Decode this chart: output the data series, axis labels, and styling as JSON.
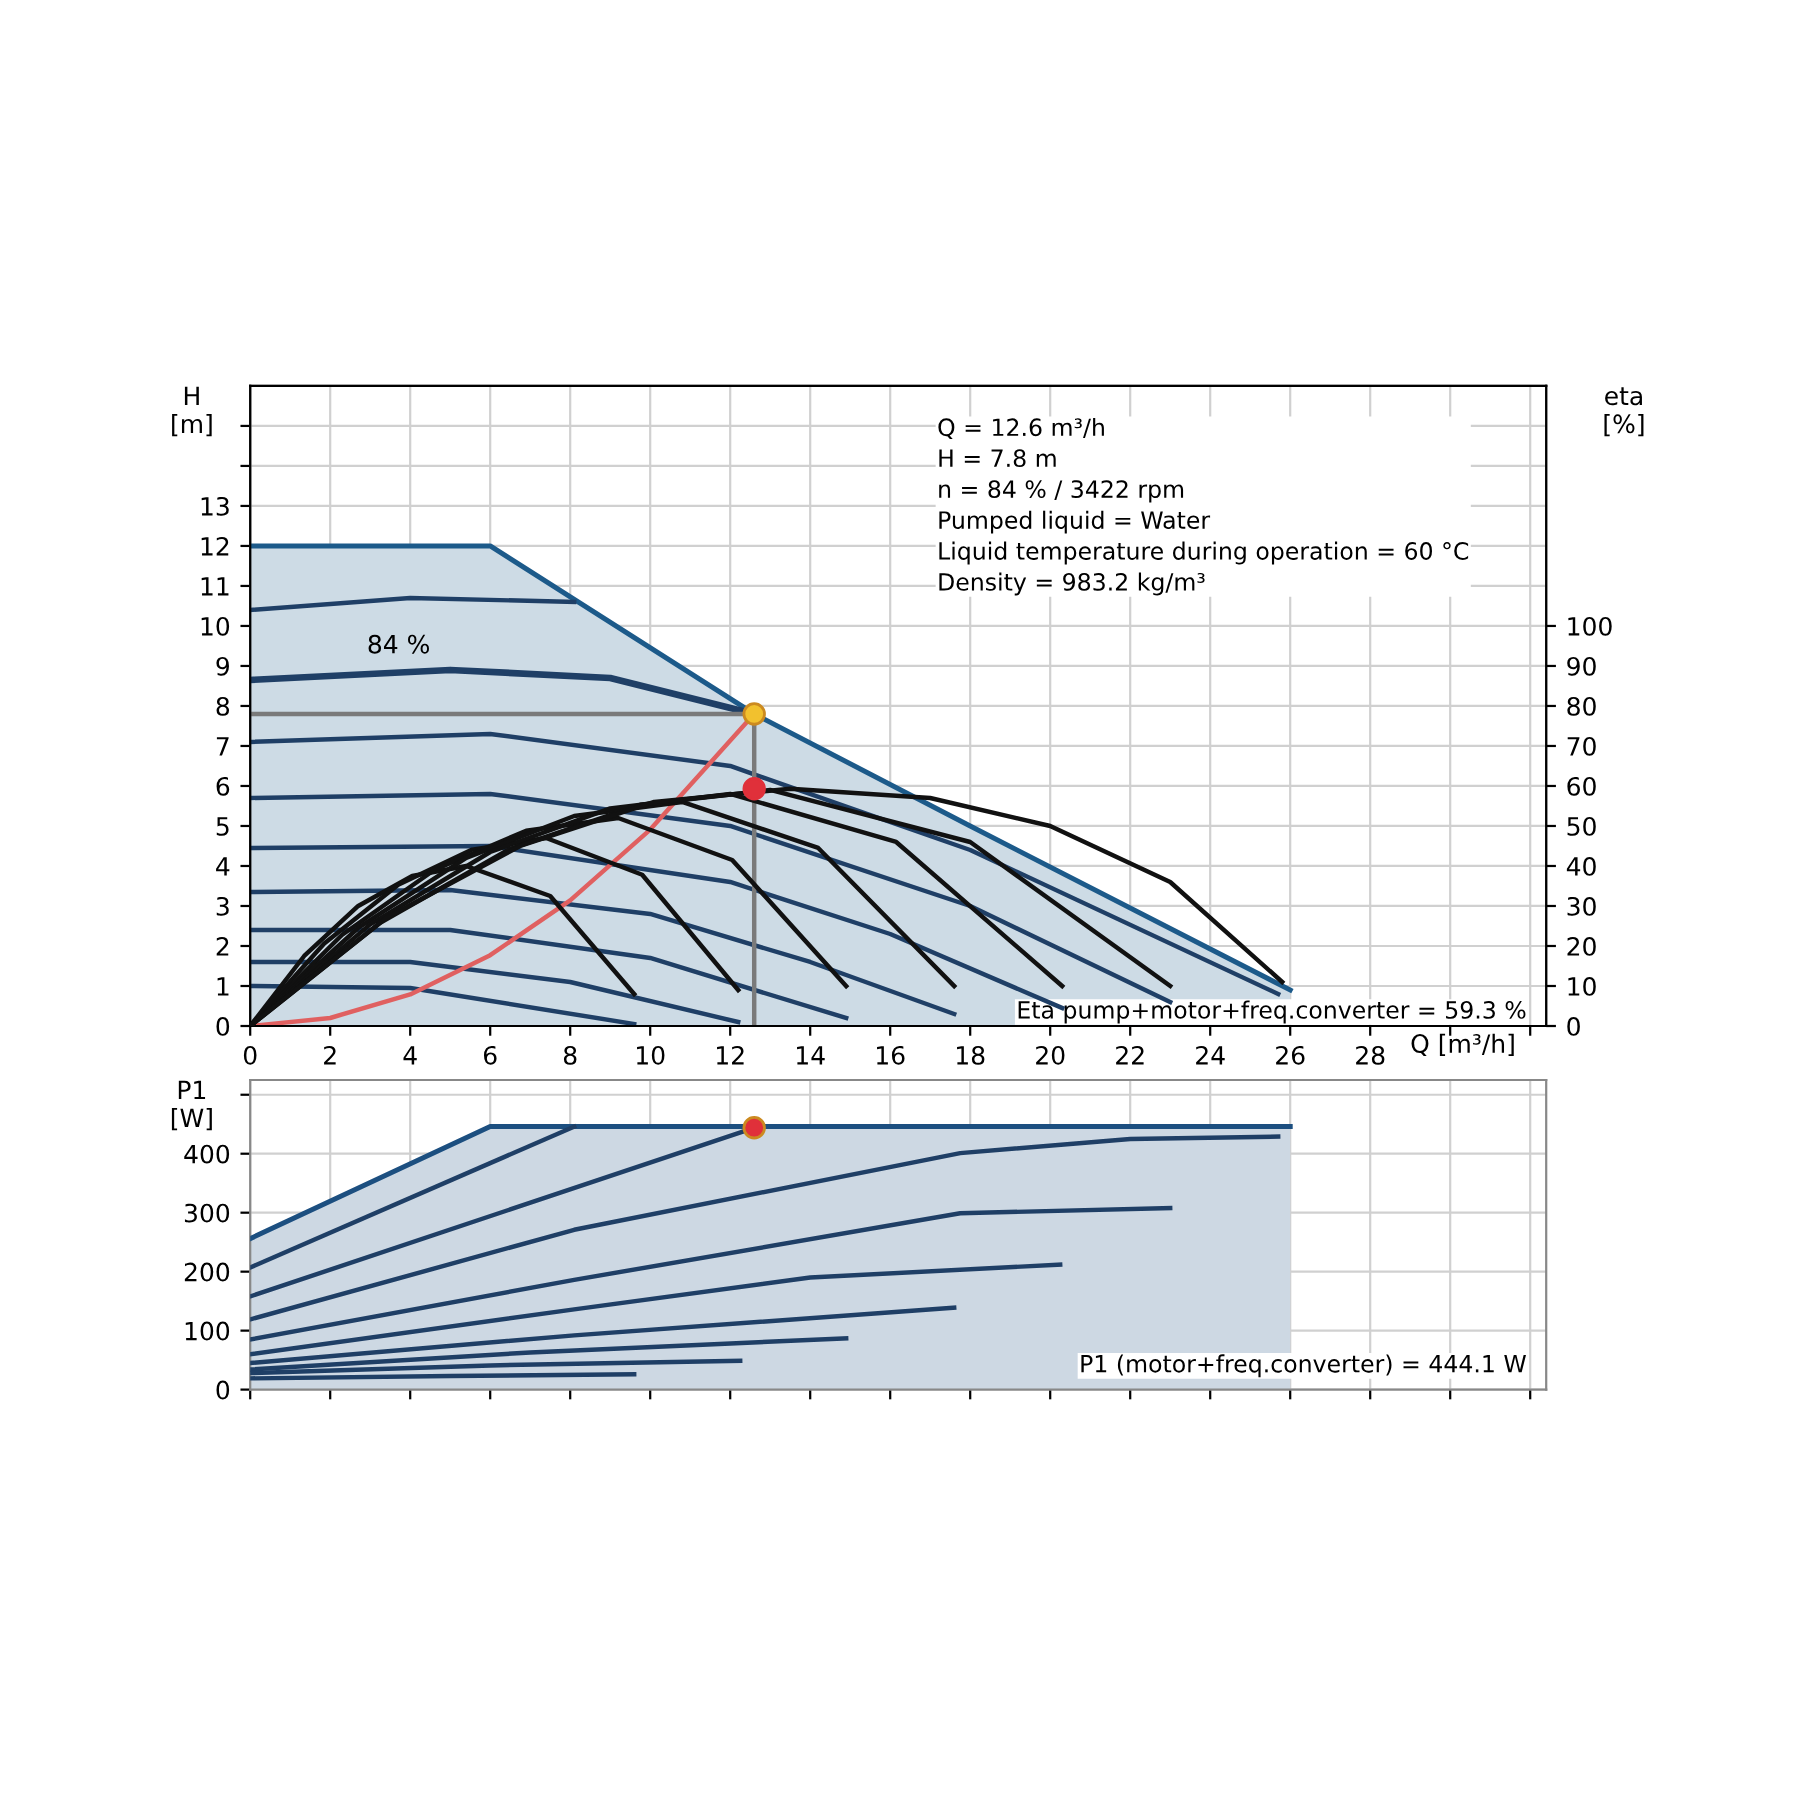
{
  "chart_data": [
    {
      "type": "line",
      "ylabel": "H\n[m]",
      "y2label": "eta\n[%]",
      "xlabel": "Q [m³/h]",
      "xlim": [
        0,
        32.4
      ],
      "xticks": [
        0,
        2,
        4,
        6,
        8,
        10,
        12,
        14,
        16,
        18,
        20,
        22,
        24,
        26,
        28,
        {
          "value": 30,
          "label": null
        },
        {
          "value": 32,
          "label": null
        }
      ],
      "ylim": [
        0,
        16
      ],
      "yticks": [
        0,
        1,
        2,
        3,
        4,
        5,
        6,
        7,
        8,
        9,
        10,
        11,
        12,
        13,
        {
          "value": 14,
          "label": null
        },
        {
          "value": 15,
          "label": null
        }
      ],
      "y2lim": [
        0,
        160
      ],
      "y2ticks": [
        0,
        10,
        20,
        30,
        40,
        50,
        60,
        70,
        80,
        90,
        100
      ],
      "grid": true,
      "legend": false,
      "series": [
        {
          "type": "area",
          "color": "#1c5a8a",
          "x": [
            0,
            6,
            12.6,
            18,
            26
          ],
          "values": [
            12,
            12,
            7.8,
            5.0,
            0.9
          ]
        },
        {
          "type": "line",
          "color": "#1f3f66",
          "x": [
            0,
            4,
            8.1
          ],
          "values": [
            10.4,
            10.7,
            10.6
          ]
        },
        {
          "type": "line",
          "name": "84 %",
          "color": "#1f3f66",
          "x": [
            0,
            5,
            9,
            12.6
          ],
          "values": [
            8.65,
            8.9,
            8.7,
            7.8
          ]
        },
        {
          "type": "line",
          "color": "#1f3f66",
          "x": [
            0,
            6,
            12,
            18,
            25.7
          ],
          "values": [
            7.1,
            7.3,
            6.5,
            4.4,
            0.8
          ]
        },
        {
          "type": "line",
          "color": "#1f3f66",
          "x": [
            0,
            6,
            12,
            18,
            23
          ],
          "values": [
            5.7,
            5.8,
            5.0,
            3.0,
            0.6
          ]
        },
        {
          "type": "line",
          "color": "#1f3f66",
          "x": [
            0,
            6,
            12,
            16,
            20.3
          ],
          "values": [
            4.45,
            4.5,
            3.6,
            2.3,
            0.45
          ]
        },
        {
          "type": "line",
          "color": "#1f3f66",
          "x": [
            0,
            5,
            10,
            14,
            17.6
          ],
          "values": [
            3.35,
            3.4,
            2.8,
            1.6,
            0.3
          ]
        },
        {
          "type": "line",
          "color": "#1f3f66",
          "x": [
            0,
            5,
            10,
            14.9
          ],
          "values": [
            2.4,
            2.4,
            1.7,
            0.2
          ]
        },
        {
          "type": "line",
          "color": "#1f3f66",
          "x": [
            0,
            4,
            8,
            12.2
          ],
          "values": [
            1.6,
            1.6,
            1.1,
            0.1
          ]
        },
        {
          "type": "line",
          "color": "#1f3f66",
          "x": [
            0,
            4,
            9.6
          ],
          "values": [
            1.0,
            0.95,
            0.05
          ]
        },
        {
          "type": "line",
          "axis": "y2",
          "color": "#111111",
          "x": [
            0,
            1.35,
            2.7,
            4.05,
            5.4,
            7.5,
            9.6
          ],
          "values": [
            0,
            17.5,
            30,
            37.5,
            40,
            32.5,
            8
          ]
        },
        {
          "type": "line",
          "axis": "y2",
          "color": "#111111",
          "x": [
            0,
            1.85,
            3.7,
            5.55,
            7.4,
            9.8,
            12.2
          ],
          "values": [
            0,
            20.6,
            35.3,
            44.1,
            47,
            37.8,
            9
          ]
        },
        {
          "type": "line",
          "axis": "y2",
          "color": "#111111",
          "x": [
            0,
            2.3,
            4.6,
            6.9,
            9.2,
            12.05,
            14.9
          ],
          "values": [
            0,
            22.8,
            39,
            48.8,
            52,
            41.5,
            10
          ]
        },
        {
          "type": "line",
          "axis": "y2",
          "color": "#111111",
          "x": [
            0,
            2.7,
            5.4,
            8.1,
            10.8,
            14.2,
            17.6
          ],
          "values": [
            0,
            24.5,
            42,
            52.5,
            56,
            44.5,
            10
          ]
        },
        {
          "type": "line",
          "axis": "y2",
          "color": "#111111",
          "x": [
            0,
            3,
            6,
            9,
            12,
            16.15,
            20.3
          ],
          "values": [
            0,
            25.4,
            43.5,
            54.4,
            58,
            46,
            10
          ]
        },
        {
          "type": "line",
          "axis": "y2",
          "color": "#111111",
          "x": [
            0,
            3.25,
            6.5,
            9.75,
            13,
            18,
            23
          ],
          "values": [
            0,
            25.8,
            44.3,
            55.3,
            59,
            46,
            10
          ]
        },
        {
          "type": "line",
          "axis": "y2",
          "color": "#111111",
          "x": [
            0,
            3.4,
            6.75,
            10.1,
            13.5,
            17,
            20,
            23,
            25.8
          ],
          "values": [
            0,
            27,
            45,
            56,
            59.3,
            57,
            50,
            36,
            11
          ]
        },
        {
          "type": "line",
          "color": "#7a7a7a",
          "x": [
            0,
            12.6
          ],
          "values": [
            7.8,
            7.8
          ]
        },
        {
          "type": "line",
          "color": "#7a7a7a",
          "x": [
            12.6,
            12.6
          ],
          "values": [
            0,
            7.8
          ]
        },
        {
          "type": "line",
          "color": "#e06060",
          "x": [
            0,
            2,
            4,
            6,
            8,
            10,
            12.6
          ],
          "values": [
            0,
            0.2,
            0.79,
            1.77,
            3.14,
            4.91,
            7.8
          ]
        },
        {
          "type": "scatter",
          "color": "#f2c12e",
          "x": [
            12.6
          ],
          "values": [
            7.8
          ]
        },
        {
          "type": "scatter",
          "axis": "y2",
          "color": "#e0303a",
          "x": [
            12.6
          ],
          "values": [
            59.3
          ]
        }
      ],
      "annotations": [
        "Q = 12.6 m³/h\nH = 7.8 m\nn = 84 % / 3422 rpm\nPumped liquid = Water\nLiquid temperature during operation = 60 °C\nDensity = 983.2 kg/m³",
        "Eta pump+motor+freq.converter = 59.3 %"
      ]
    },
    {
      "type": "line",
      "ylabel": "P1\n[W]",
      "tick_labels": "y",
      "xlim": [
        0,
        32.4
      ],
      "xticks": [
        0,
        2,
        4,
        6,
        8,
        10,
        12,
        14,
        16,
        18,
        20,
        22,
        24,
        26,
        28,
        30,
        32
      ],
      "ylim": [
        0,
        525
      ],
      "yticks": [
        0,
        100,
        200,
        300,
        400,
        {
          "value": 500,
          "label": null
        }
      ],
      "grid": true,
      "legend": false,
      "series": [
        {
          "type": "area",
          "color": "#1c4f80",
          "x": [
            0,
            6,
            26
          ],
          "values": [
            256,
            446,
            446
          ]
        },
        {
          "type": "line",
          "color": "#1f3f66",
          "x": [
            0,
            8.1
          ],
          "values": [
            207,
            446
          ]
        },
        {
          "type": "line",
          "color": "#1f3f66",
          "x": [
            0,
            12.6
          ],
          "values": [
            158,
            444
          ]
        },
        {
          "type": "line",
          "color": "#1f3f66",
          "x": [
            0,
            8.1,
            17.75,
            22,
            25.7
          ],
          "values": [
            119,
            271,
            401,
            425,
            429
          ]
        },
        {
          "type": "line",
          "color": "#1f3f66",
          "x": [
            0,
            8.1,
            17.75,
            23
          ],
          "values": [
            85,
            186,
            299,
            308
          ]
        },
        {
          "type": "line",
          "color": "#1f3f66",
          "x": [
            0,
            8.1,
            14,
            20.25
          ],
          "values": [
            60,
            136,
            190,
            212
          ]
        },
        {
          "type": "line",
          "color": "#1f3f66",
          "x": [
            0,
            8.1,
            17.6
          ],
          "values": [
            45,
            92,
            139
          ]
        },
        {
          "type": "line",
          "color": "#1f3f66",
          "x": [
            0,
            7,
            14.9
          ],
          "values": [
            34,
            63,
            87
          ]
        },
        {
          "type": "line",
          "color": "#1f3f66",
          "x": [
            0,
            6,
            12.25
          ],
          "values": [
            28,
            41,
            49
          ]
        },
        {
          "type": "line",
          "color": "#1f3f66",
          "x": [
            0,
            5,
            9.6
          ],
          "values": [
            19,
            23,
            26
          ]
        },
        {
          "type": "scatter",
          "color": "#e0303a",
          "x": [
            12.6
          ],
          "values": [
            444.1
          ]
        }
      ],
      "annotations": [
        "P1 (motor+freq.converter) = 444.1 W"
      ]
    }
  ]
}
